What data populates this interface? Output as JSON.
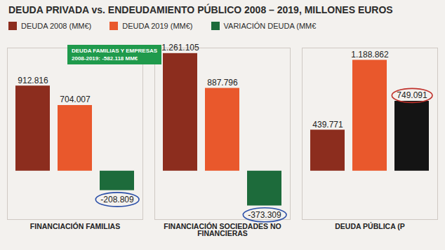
{
  "chart_data": {
    "type": "bar",
    "title": "DEUDA PRIVADA vs. ENDEUDAMIENTO PÚBLICO 2008 – 2019, MILLONES EUROS",
    "categories": [
      "FINANCIACIÓN FAMILIAS",
      "FINANCIACIÓN SOCIEDADES NO FINANCIERAS",
      "DEUDA PÚBLICA (P"
    ],
    "series": [
      {
        "name": "DEUDA 2008 (MM€)",
        "color": "#8c2d1e",
        "values": [
          912816,
          1261105,
          439771
        ],
        "value_labels": [
          "912.816",
          "1.261.105",
          "439.771"
        ]
      },
      {
        "name": "DEUDA 2019 (MM€)",
        "color": "#e9582c",
        "values": [
          704007,
          887796,
          1188862
        ],
        "value_labels": [
          "704.007",
          "887.796",
          "1.188.862"
        ]
      },
      {
        "name": "VARIACIÓN DEUDA (MM€",
        "color": "#1d6b3b",
        "colors": [
          "#1d6b3b",
          "#1d6b3b",
          "#141414"
        ],
        "values": [
          -208809,
          -373309,
          749091
        ],
        "value_labels": [
          "-208.809",
          "-373.309",
          "749.091"
        ]
      }
    ],
    "annotation": [
      "DEUDA FAMILIAS  Y EMPRESAS",
      "2008-2019: -582.118 MM€"
    ],
    "ylim": [
      -520000,
      1320000
    ],
    "data_labels": true,
    "tick_labels": "x",
    "legend": "top"
  }
}
